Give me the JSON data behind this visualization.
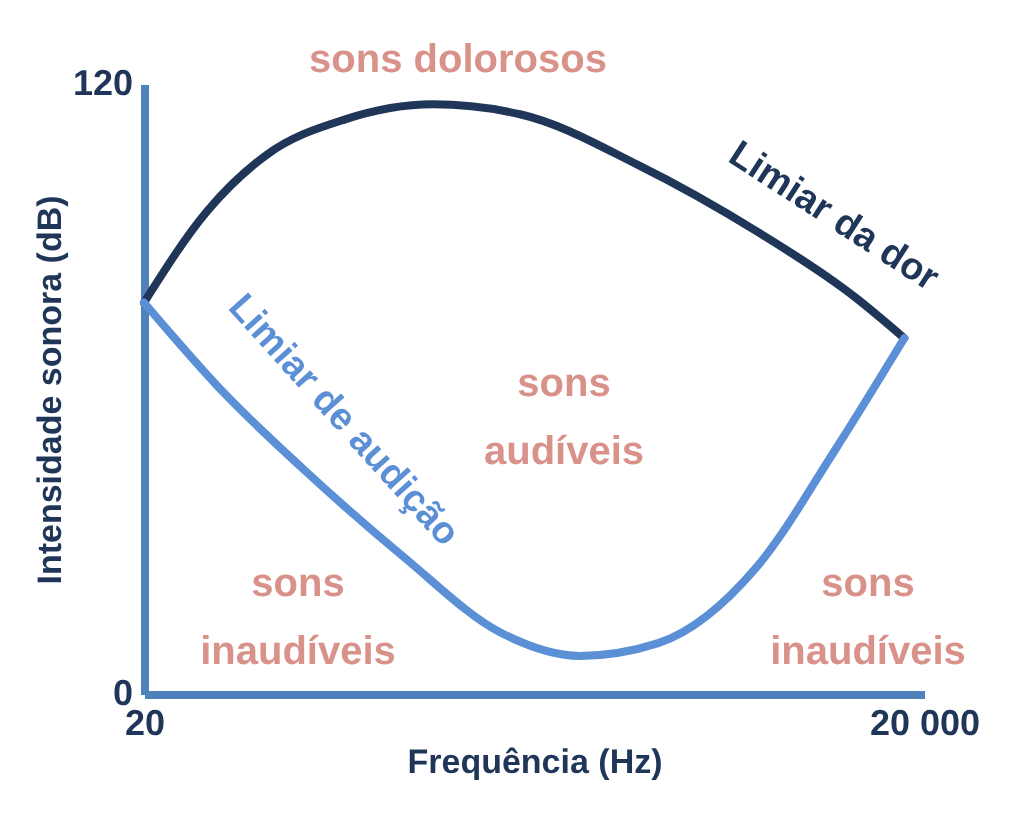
{
  "chart_data": {
    "type": "line",
    "xlabel": "Frequência (Hz)",
    "ylabel": "Intensidade sonora (dB)",
    "log": "x",
    "xlim": [
      20,
      20000
    ],
    "ylim": [
      0,
      120
    ],
    "xticks": [
      20,
      {
        "value": 20000,
        "label": "20 000"
      }
    ],
    "yticks": [
      0,
      120
    ],
    "grid": false,
    "legend": false,
    "marker": "none",
    "line_style": "solid",
    "series": [
      {
        "name": "Limiar da dor",
        "color": "#1f3658",
        "x": [
          20,
          35,
          59,
          118,
          258,
          564,
          1600,
          4550,
          10900,
          16800
        ],
        "values": [
          77,
          95,
          106,
          113,
          116,
          114,
          104,
          91,
          78,
          70
        ]
      },
      {
        "name": "Limiar de audição",
        "color": "#5b8fd6",
        "x": [
          20,
          41,
          83,
          199,
          474,
          950,
          1900,
          4550,
          9100,
          16800
        ],
        "values": [
          77,
          59,
          44,
          27,
          12,
          7.5,
          10,
          25,
          48,
          70
        ]
      }
    ],
    "annotations": [
      "sons dolorosos",
      "sons audíveis",
      "sons inaudíveis",
      "sons inaudíveis"
    ]
  }
}
